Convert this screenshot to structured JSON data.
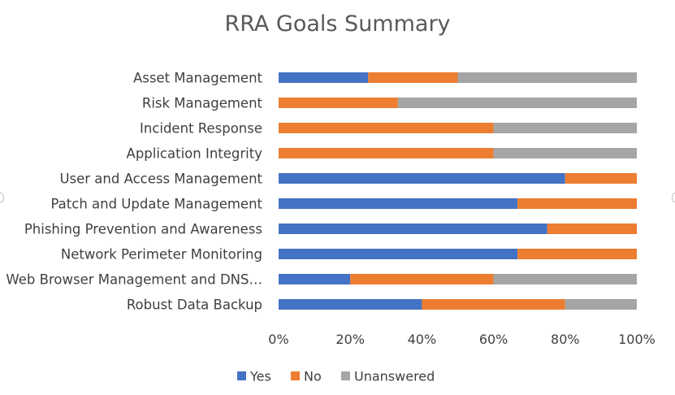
{
  "chart_data": {
    "type": "bar",
    "orientation": "horizontal",
    "stacked": "percent",
    "title": "RRA Goals Summary",
    "categories": [
      "Asset Management",
      "Risk Management",
      "Incident Response",
      "Application Integrity",
      "User and Access Management",
      "Patch and Update Management",
      "Phishing Prevention and Awareness",
      "Network Perimeter Monitoring",
      "Web Browser Management and DNS…",
      "Robust Data Backup"
    ],
    "series": [
      {
        "name": "Yes",
        "color": "#4472c4",
        "values": [
          25,
          0,
          0,
          0,
          80,
          66.7,
          75,
          66.7,
          20,
          40
        ]
      },
      {
        "name": "No",
        "color": "#ed7d31",
        "values": [
          25,
          33.3,
          60,
          60,
          20,
          33.3,
          25,
          33.3,
          40,
          40
        ]
      },
      {
        "name": "Unanswered",
        "color": "#a5a5a5",
        "values": [
          50,
          66.7,
          40,
          40,
          0,
          0,
          0,
          0,
          40,
          20
        ]
      }
    ],
    "xticks": [
      "0%",
      "20%",
      "40%",
      "60%",
      "80%",
      "100%"
    ],
    "xlim": [
      0,
      100
    ],
    "grid": false,
    "legend": "bottom"
  }
}
